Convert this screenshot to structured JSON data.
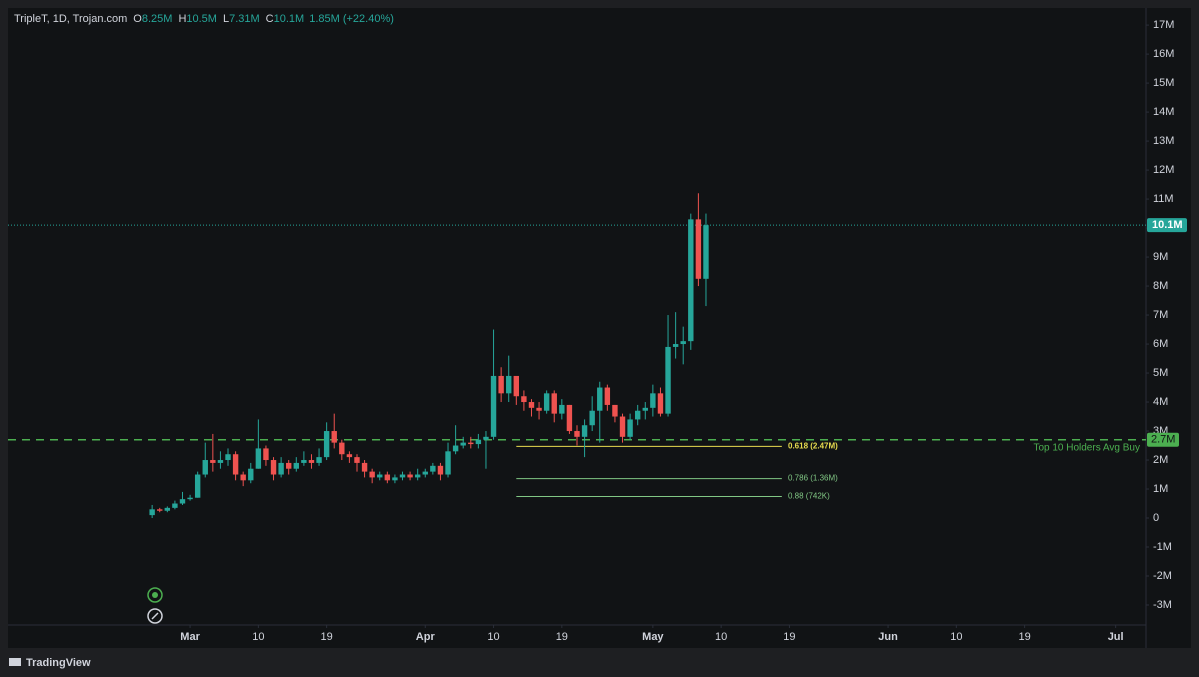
{
  "chart_data": {
    "type": "candlestick",
    "title": "TripleT, 1D, Trojan.com",
    "ohlc": [
      {
        "name": "O",
        "label": "8.25M"
      },
      {
        "name": "H",
        "label": "10.5M"
      },
      {
        "name": "L",
        "label": "7.31M"
      },
      {
        "name": "C",
        "label": "10.1M"
      }
    ],
    "change": "1.85M (+22.40%)",
    "colors": {
      "up": "#26a69a",
      "down": "#ef5350"
    },
    "x": [
      "Feb 24",
      "Feb 25",
      "Feb 26",
      "Feb 27",
      "Feb 28",
      "Mar 1",
      "Mar 2",
      "Mar 3",
      "Mar 4",
      "Mar 5",
      "Mar 6",
      "Mar 7",
      "Mar 8",
      "Mar 9",
      "Mar 10",
      "Mar 11",
      "Mar 12",
      "Mar 13",
      "Mar 14",
      "Mar 15",
      "Mar 16",
      "Mar 17",
      "Mar 18",
      "Mar 19",
      "Mar 20",
      "Mar 21",
      "Mar 22",
      "Mar 23",
      "Mar 24",
      "Mar 25",
      "Mar 26",
      "Mar 27",
      "Mar 28",
      "Mar 29",
      "Mar 30",
      "Mar 31",
      "Apr 1",
      "Apr 2",
      "Apr 3",
      "Apr 4",
      "Apr 5",
      "Apr 6",
      "Apr 7",
      "Apr 8",
      "Apr 9",
      "Apr 10",
      "Apr 11",
      "Apr 12",
      "Apr 13",
      "Apr 14",
      "Apr 15",
      "Apr 16",
      "Apr 17",
      "Apr 18",
      "Apr 19",
      "Apr 20",
      "Apr 21",
      "Apr 22",
      "Apr 23",
      "Apr 24",
      "Apr 25",
      "Apr 26",
      "Apr 27",
      "Apr 28",
      "Apr 29",
      "Apr 30",
      "May 1",
      "May 2",
      "May 3",
      "May 4",
      "May 5",
      "May 6",
      "May 7",
      "May 8"
    ],
    "open": [
      0.1,
      0.3,
      0.25,
      0.35,
      0.5,
      0.65,
      0.7,
      1.5,
      2.0,
      1.9,
      2.0,
      2.2,
      1.5,
      1.3,
      1.7,
      2.4,
      2.0,
      1.5,
      1.9,
      1.7,
      1.9,
      2.0,
      1.9,
      2.1,
      3.0,
      2.6,
      2.2,
      2.1,
      1.9,
      1.6,
      1.4,
      1.5,
      1.3,
      1.4,
      1.5,
      1.4,
      1.5,
      1.6,
      1.8,
      1.5,
      2.3,
      2.5,
      2.6,
      2.55,
      2.7,
      2.8,
      4.9,
      4.3,
      4.9,
      4.2,
      4.0,
      3.8,
      3.7,
      4.3,
      3.6,
      3.9,
      3.0,
      2.8,
      3.2,
      3.7,
      4.5,
      3.9,
      3.5,
      2.8,
      3.4,
      3.7,
      3.8,
      4.3,
      3.6,
      5.9,
      6.0,
      6.1,
      10.3,
      8.25
    ],
    "high": [
      0.45,
      0.35,
      0.4,
      0.6,
      0.9,
      0.8,
      1.6,
      2.6,
      2.9,
      2.3,
      2.4,
      2.3,
      1.6,
      1.9,
      3.4,
      2.5,
      2.1,
      2.1,
      2.0,
      2.1,
      2.3,
      2.2,
      2.4,
      3.3,
      3.6,
      2.7,
      2.3,
      2.2,
      2.0,
      1.7,
      1.6,
      1.6,
      1.5,
      1.6,
      1.6,
      1.7,
      1.7,
      1.9,
      1.9,
      2.6,
      3.2,
      2.8,
      2.8,
      2.9,
      3.0,
      6.5,
      5.2,
      5.6,
      4.8,
      4.4,
      4.1,
      4.0,
      4.4,
      4.4,
      4.1,
      3.9,
      3.2,
      3.4,
      4.2,
      4.7,
      4.6,
      3.9,
      3.6,
      3.6,
      3.9,
      4.0,
      4.6,
      4.5,
      7.0,
      7.1,
      6.6,
      10.5,
      11.2,
      10.5
    ],
    "low": [
      0.0,
      0.2,
      0.2,
      0.3,
      0.45,
      0.6,
      0.7,
      1.4,
      1.6,
      1.7,
      1.8,
      1.3,
      1.1,
      1.2,
      1.7,
      1.8,
      1.3,
      1.4,
      1.5,
      1.6,
      1.8,
      1.7,
      1.8,
      2.0,
      2.4,
      2.0,
      1.9,
      1.6,
      1.4,
      1.2,
      1.3,
      1.2,
      1.2,
      1.3,
      1.3,
      1.3,
      1.4,
      1.5,
      1.3,
      1.4,
      2.2,
      2.4,
      2.4,
      2.4,
      1.7,
      2.7,
      4.0,
      4.0,
      3.9,
      3.7,
      3.5,
      3.4,
      3.6,
      3.3,
      3.4,
      2.9,
      2.5,
      2.1,
      3.0,
      2.6,
      3.7,
      3.3,
      2.6,
      2.7,
      3.2,
      3.4,
      3.5,
      3.5,
      3.5,
      5.5,
      5.3,
      5.8,
      8.0,
      7.31
    ],
    "close": [
      0.3,
      0.25,
      0.35,
      0.5,
      0.65,
      0.7,
      1.5,
      2.0,
      1.9,
      2.0,
      2.2,
      1.5,
      1.3,
      1.7,
      2.4,
      2.0,
      1.5,
      1.9,
      1.7,
      1.9,
      2.0,
      1.9,
      2.1,
      3.0,
      2.6,
      2.2,
      2.1,
      1.9,
      1.6,
      1.4,
      1.5,
      1.3,
      1.4,
      1.5,
      1.4,
      1.5,
      1.6,
      1.8,
      1.5,
      2.3,
      2.5,
      2.6,
      2.55,
      2.7,
      2.8,
      4.9,
      4.3,
      4.9,
      4.2,
      4.0,
      3.8,
      3.7,
      4.3,
      3.6,
      3.9,
      3.0,
      2.8,
      3.2,
      3.7,
      4.5,
      3.9,
      3.5,
      2.8,
      3.4,
      3.7,
      3.8,
      4.3,
      3.6,
      5.9,
      6.0,
      6.1,
      10.3,
      8.25,
      10.1
    ],
    "xlim": [
      "Feb 5",
      "Jul 5"
    ],
    "xticks": [
      {
        "value": "Mar 1",
        "label": "Mar"
      },
      {
        "value": "Mar 10",
        "label": "10"
      },
      {
        "value": "Mar 19",
        "label": "19"
      },
      {
        "value": "Apr 1",
        "label": "Apr"
      },
      {
        "value": "Apr 10",
        "label": "10"
      },
      {
        "value": "Apr 19",
        "label": "19"
      },
      {
        "value": "May 1",
        "label": "May"
      },
      {
        "value": "May 10",
        "label": "10"
      },
      {
        "value": "May 19",
        "label": "19"
      },
      {
        "value": "Jun 1",
        "label": "Jun"
      },
      {
        "value": "Jun 10",
        "label": "10"
      },
      {
        "value": "Jun 19",
        "label": "19"
      },
      {
        "value": "Jul 1",
        "label": "Jul"
      }
    ],
    "ylim": [
      -3.69,
      17.59
    ],
    "yticks": [
      {
        "value": -3,
        "label": "-3M"
      },
      {
        "value": -2,
        "label": "-2M"
      },
      {
        "value": -1,
        "label": "-1M"
      },
      0,
      {
        "value": 1,
        "label": "1M"
      },
      {
        "value": 2,
        "label": "2M"
      },
      {
        "value": 3,
        "label": "3M"
      },
      {
        "value": 4,
        "label": "4M"
      },
      {
        "value": 5,
        "label": "5M"
      },
      {
        "value": 6,
        "label": "6M"
      },
      {
        "value": 7,
        "label": "7M"
      },
      {
        "value": 8,
        "label": "8M"
      },
      {
        "value": 9,
        "label": "9M"
      },
      {
        "value": 10,
        "label": "10M"
      },
      {
        "value": 11,
        "label": "11M"
      },
      {
        "value": 12,
        "label": "12M"
      },
      {
        "value": 13,
        "label": "13M"
      },
      {
        "value": 14,
        "label": "14M"
      },
      {
        "value": 15,
        "label": "15M"
      },
      {
        "value": 16,
        "label": "16M"
      },
      {
        "value": 17,
        "label": "17M"
      }
    ],
    "price_line": {
      "value": 10.1,
      "label": "10.1M",
      "color": "#26a69a"
    },
    "reference_line": {
      "value": 2.7,
      "label": "2.7M",
      "text": "Top 10 Holders Avg Buy",
      "color": "#4caf50"
    },
    "fib_range": [
      "Apr 13",
      "May 18"
    ],
    "fib_levels": [
      {
        "value": 2.47,
        "label": "0.618 (2.47M)",
        "color": "#e8dc4f"
      },
      {
        "value": 1.36,
        "label": "0.786 (1.36M)",
        "color": "#81c784"
      },
      {
        "value": 0.742,
        "label": "0.88 (742K)",
        "color": "#81c784"
      }
    ]
  },
  "footer": {
    "brand": "TradingView"
  }
}
